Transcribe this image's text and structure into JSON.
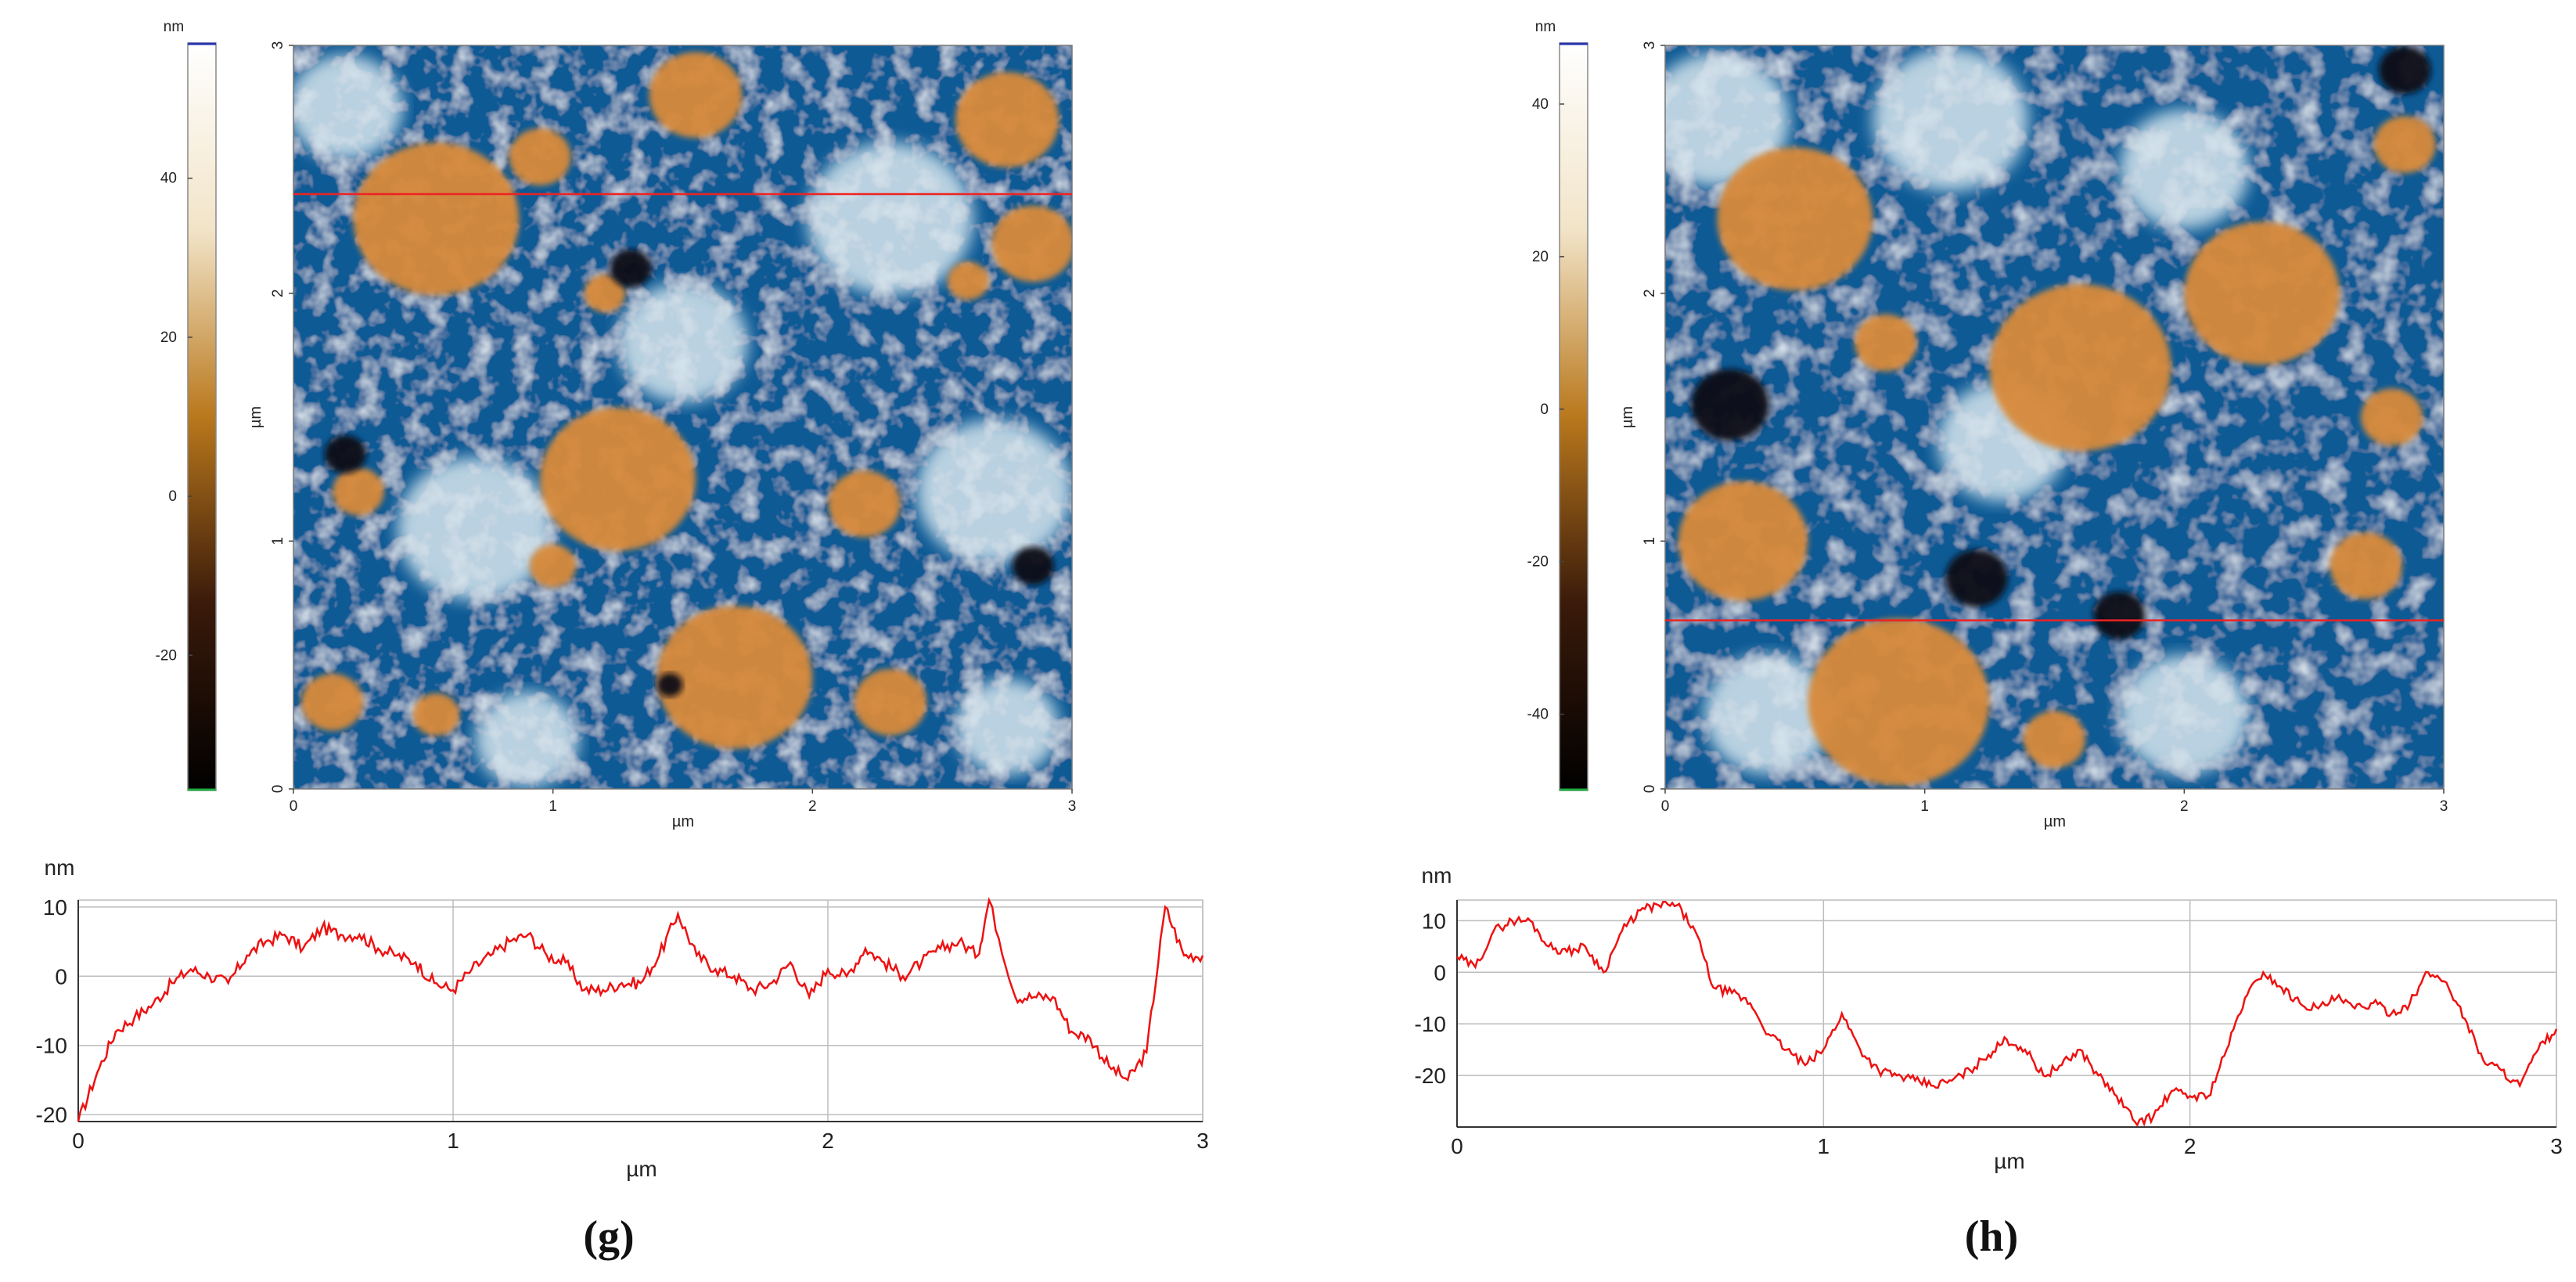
{
  "chart_data": [
    {
      "panel_label": "g",
      "type": "heatmap",
      "title": "",
      "colorbar": {
        "unit": "nm",
        "ticks": [
          40,
          20,
          0,
          -20
        ],
        "range": [
          -37,
          57
        ],
        "colors": [
          "#000000",
          "#3a1a0a",
          "#b9781c",
          "#f2e4c8",
          "#ffffff"
        ]
      },
      "xlabel": "µm",
      "ylabel": "µm",
      "xticks": [
        0,
        1,
        2,
        3
      ],
      "yticks": [
        0,
        1,
        2,
        3
      ],
      "xlim": [
        0,
        3
      ],
      "ylim": [
        0,
        3
      ],
      "profile_line_y_um": 2.4,
      "surface_colors": {
        "low": "#0a5a95",
        "mid": "#d7e6ee",
        "high": "#d88a3a"
      },
      "features": [
        {
          "x": 0.55,
          "y": 2.3,
          "r": 0.32,
          "level": "high"
        },
        {
          "x": 1.25,
          "y": 1.25,
          "r": 0.3,
          "level": "high"
        },
        {
          "x": 1.7,
          "y": 0.45,
          "r": 0.3,
          "level": "high"
        },
        {
          "x": 1.55,
          "y": 2.8,
          "r": 0.18,
          "level": "high"
        },
        {
          "x": 2.75,
          "y": 2.7,
          "r": 0.2,
          "level": "high"
        },
        {
          "x": 2.2,
          "y": 1.15,
          "r": 0.14,
          "level": "high"
        },
        {
          "x": 0.95,
          "y": 2.55,
          "r": 0.12,
          "level": "high"
        },
        {
          "x": 0.15,
          "y": 0.35,
          "r": 0.12,
          "level": "high"
        },
        {
          "x": 0.55,
          "y": 0.3,
          "r": 0.09,
          "level": "high"
        },
        {
          "x": 2.3,
          "y": 0.35,
          "r": 0.14,
          "level": "high"
        },
        {
          "x": 2.85,
          "y": 2.2,
          "r": 0.16,
          "level": "high"
        },
        {
          "x": 0.25,
          "y": 1.2,
          "r": 0.1,
          "level": "high"
        },
        {
          "x": 1.2,
          "y": 2.0,
          "r": 0.08,
          "level": "high"
        },
        {
          "x": 2.6,
          "y": 2.05,
          "r": 0.08,
          "level": "high"
        },
        {
          "x": 1.0,
          "y": 0.9,
          "r": 0.09,
          "level": "high"
        },
        {
          "x": 0.2,
          "y": 2.75,
          "r": 0.22,
          "level": "mid"
        },
        {
          "x": 2.3,
          "y": 2.3,
          "r": 0.32,
          "level": "mid"
        },
        {
          "x": 0.7,
          "y": 1.05,
          "r": 0.3,
          "level": "mid"
        },
        {
          "x": 2.7,
          "y": 1.2,
          "r": 0.3,
          "level": "mid"
        },
        {
          "x": 1.5,
          "y": 1.8,
          "r": 0.25,
          "level": "mid"
        },
        {
          "x": 0.9,
          "y": 0.2,
          "r": 0.2,
          "level": "mid"
        },
        {
          "x": 2.75,
          "y": 0.25,
          "r": 0.2,
          "level": "mid"
        },
        {
          "x": 1.45,
          "y": 0.42,
          "r": 0.05,
          "level": "dark"
        },
        {
          "x": 1.3,
          "y": 2.1,
          "r": 0.08,
          "level": "dark"
        },
        {
          "x": 2.85,
          "y": 0.9,
          "r": 0.08,
          "level": "dark"
        },
        {
          "x": 0.2,
          "y": 1.35,
          "r": 0.08,
          "level": "dark"
        }
      ],
      "profile": {
        "type": "line",
        "ylabel": "nm",
        "xlabel": "µm",
        "xlim": [
          0,
          3
        ],
        "ylim": [
          -21,
          11
        ],
        "xticks": [
          0,
          1,
          2,
          3
        ],
        "yticks": [
          10,
          0,
          -10,
          -20
        ],
        "x": [
          0,
          0.05,
          0.1,
          0.15,
          0.2,
          0.25,
          0.3,
          0.35,
          0.4,
          0.45,
          0.5,
          0.55,
          0.6,
          0.65,
          0.7,
          0.75,
          0.8,
          0.85,
          0.9,
          0.95,
          1.0,
          1.05,
          1.1,
          1.15,
          1.2,
          1.25,
          1.3,
          1.35,
          1.4,
          1.45,
          1.5,
          1.55,
          1.6,
          1.65,
          1.7,
          1.75,
          1.8,
          1.85,
          1.9,
          1.95,
          2.0,
          2.05,
          2.1,
          2.15,
          2.2,
          2.25,
          2.3,
          2.35,
          2.4,
          2.43,
          2.5,
          2.55,
          2.6,
          2.65,
          2.7,
          2.75,
          2.8,
          2.85,
          2.9,
          2.95,
          3.0
        ],
        "y": [
          -21,
          -14,
          -8,
          -6,
          -4,
          -1,
          1,
          0,
          -1,
          3,
          5,
          6,
          4,
          7,
          6,
          6,
          4,
          3,
          2,
          -1,
          -2,
          1,
          3,
          5,
          6,
          3,
          2,
          -2,
          -2,
          -1,
          -1,
          3,
          9,
          3,
          1,
          0,
          -2,
          -1,
          2,
          -3,
          1,
          0,
          4,
          2,
          0,
          2,
          4,
          5,
          3,
          11,
          -3,
          -3,
          -3,
          -8,
          -9,
          -13,
          -15,
          -11,
          10,
          3,
          3
        ]
      }
    },
    {
      "panel_label": "h",
      "type": "heatmap",
      "title": "",
      "colorbar": {
        "unit": "nm",
        "ticks": [
          40,
          20,
          0,
          -20,
          -40
        ],
        "range": [
          -50,
          48
        ],
        "colors": [
          "#000000",
          "#3a1a0a",
          "#b9781c",
          "#f2e4c8",
          "#ffffff"
        ]
      },
      "xlabel": "µm",
      "ylabel": "µm",
      "xticks": [
        0,
        1,
        2,
        3
      ],
      "yticks": [
        0,
        1,
        2,
        3
      ],
      "xlim": [
        0,
        3
      ],
      "ylim": [
        0,
        3
      ],
      "profile_line_y_um": 0.68,
      "surface_colors": {
        "low": "#0a5a95",
        "mid": "#d7e6ee",
        "high": "#d88a3a"
      },
      "features": [
        {
          "x": 0.5,
          "y": 2.3,
          "r": 0.3,
          "level": "high"
        },
        {
          "x": 1.6,
          "y": 1.7,
          "r": 0.35,
          "level": "high"
        },
        {
          "x": 2.3,
          "y": 2.0,
          "r": 0.3,
          "level": "high"
        },
        {
          "x": 0.3,
          "y": 1.0,
          "r": 0.25,
          "level": "high"
        },
        {
          "x": 0.9,
          "y": 0.35,
          "r": 0.35,
          "level": "high"
        },
        {
          "x": 2.85,
          "y": 2.6,
          "r": 0.12,
          "level": "high"
        },
        {
          "x": 0.85,
          "y": 1.8,
          "r": 0.12,
          "level": "high"
        },
        {
          "x": 2.7,
          "y": 0.9,
          "r": 0.14,
          "level": "high"
        },
        {
          "x": 1.5,
          "y": 0.2,
          "r": 0.12,
          "level": "high"
        },
        {
          "x": 2.8,
          "y": 1.5,
          "r": 0.12,
          "level": "high"
        },
        {
          "x": 0.2,
          "y": 2.7,
          "r": 0.28,
          "level": "mid"
        },
        {
          "x": 1.1,
          "y": 2.7,
          "r": 0.3,
          "level": "mid"
        },
        {
          "x": 2.0,
          "y": 2.5,
          "r": 0.25,
          "level": "mid"
        },
        {
          "x": 2.0,
          "y": 0.3,
          "r": 0.25,
          "level": "mid"
        },
        {
          "x": 0.4,
          "y": 0.3,
          "r": 0.25,
          "level": "mid"
        },
        {
          "x": 1.3,
          "y": 1.4,
          "r": 0.25,
          "level": "mid"
        },
        {
          "x": 0.25,
          "y": 1.55,
          "r": 0.15,
          "level": "dark"
        },
        {
          "x": 1.2,
          "y": 0.85,
          "r": 0.12,
          "level": "dark"
        },
        {
          "x": 2.85,
          "y": 2.9,
          "r": 0.1,
          "level": "dark"
        },
        {
          "x": 1.75,
          "y": 0.7,
          "r": 0.1,
          "level": "dark"
        }
      ],
      "profile": {
        "type": "line",
        "ylabel": "nm",
        "xlabel": "µm",
        "xlim": [
          0,
          3
        ],
        "ylim": [
          -30,
          14
        ],
        "xticks": [
          0,
          1,
          2,
          3
        ],
        "yticks": [
          10,
          0,
          -10,
          -20
        ],
        "x": [
          0,
          0.05,
          0.1,
          0.15,
          0.2,
          0.25,
          0.3,
          0.35,
          0.4,
          0.45,
          0.5,
          0.55,
          0.6,
          0.65,
          0.7,
          0.75,
          0.8,
          0.85,
          0.9,
          0.95,
          1.0,
          1.05,
          1.1,
          1.15,
          1.2,
          1.25,
          1.3,
          1.35,
          1.4,
          1.45,
          1.5,
          1.55,
          1.6,
          1.65,
          1.7,
          1.75,
          1.8,
          1.85,
          1.9,
          1.95,
          2.0,
          2.05,
          2.1,
          2.15,
          2.2,
          2.25,
          2.3,
          2.35,
          2.4,
          2.45,
          2.5,
          2.55,
          2.6,
          2.65,
          2.7,
          2.75,
          2.8,
          2.85,
          2.9,
          2.95,
          3.0
        ],
        "y": [
          3,
          1,
          8,
          10,
          10,
          5,
          4,
          5,
          0,
          8,
          12,
          13,
          13,
          8,
          -3,
          -4,
          -6,
          -12,
          -15,
          -18,
          -15,
          -8,
          -15,
          -19,
          -20,
          -21,
          -22,
          -21,
          -19,
          -16,
          -13,
          -15,
          -20,
          -18,
          -15,
          -20,
          -24,
          -29,
          -28,
          -23,
          -24,
          -24,
          -15,
          -5,
          0,
          -3,
          -6,
          -7,
          -5,
          -7,
          -6,
          -8,
          -6,
          0,
          -2,
          -9,
          -17,
          -19,
          -22,
          -15,
          -11
        ]
      }
    }
  ]
}
